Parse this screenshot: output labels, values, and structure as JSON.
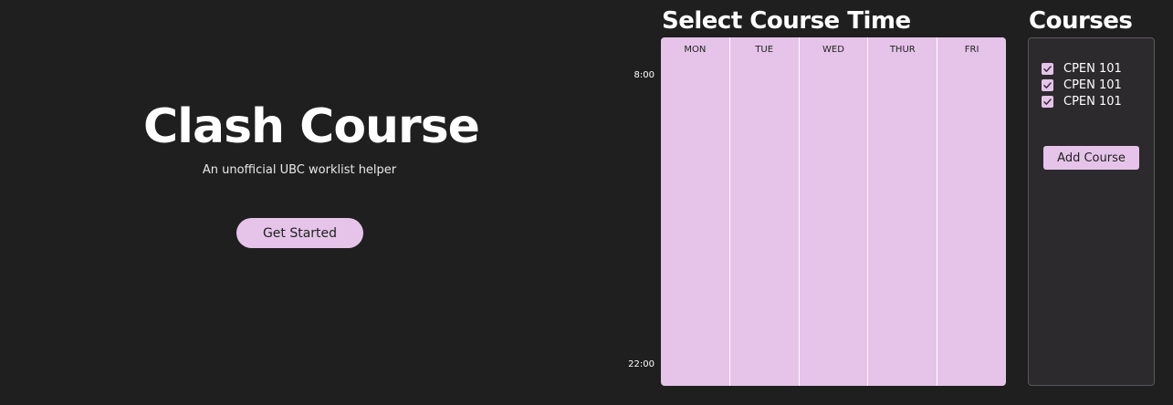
{
  "hero": {
    "title": "Clash Course",
    "subtitle": "An unofficial UBC worklist helper",
    "cta_label": "Get Started"
  },
  "schedule": {
    "title": "Select Course Time",
    "time_start": "8:00",
    "time_end": "22:00",
    "days": [
      "MON",
      "TUE",
      "WED",
      "THUR",
      "FRI"
    ]
  },
  "courses": {
    "title": "Courses",
    "items": [
      {
        "label": "CPEN 101",
        "checked": true
      },
      {
        "label": "CPEN 101",
        "checked": true
      },
      {
        "label": "CPEN 101",
        "checked": true
      }
    ],
    "add_label": "Add Course"
  },
  "colors": {
    "background": "#1f1f1f",
    "accent": "#e6c4ea",
    "panel": "#2c2a2d"
  },
  "icons": {
    "checkbox": "check-icon"
  }
}
